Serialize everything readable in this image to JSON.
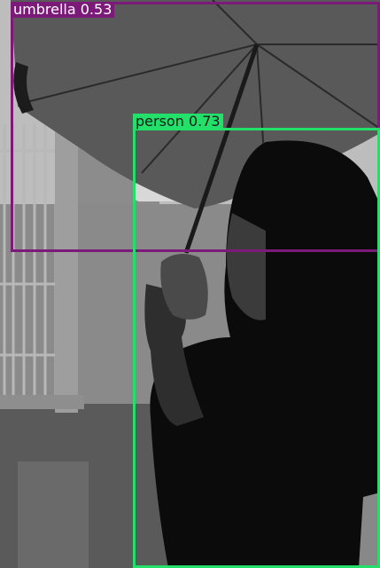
{
  "detections": [
    {
      "label": "umbrella",
      "score": "0.53",
      "color": "#7b1a78",
      "text_color": "#ffffff"
    },
    {
      "label": "person",
      "score": "0.73",
      "color": "#22e06a",
      "text_color": "#1a1a1a"
    }
  ],
  "photo": {
    "subject": "woman-holding-umbrella",
    "palette": {
      "ground": "#6e6e6e",
      "umbrella": "#5a5a5a",
      "silhouette": "#0b0b0b",
      "gate": "#b0b0b0"
    }
  }
}
